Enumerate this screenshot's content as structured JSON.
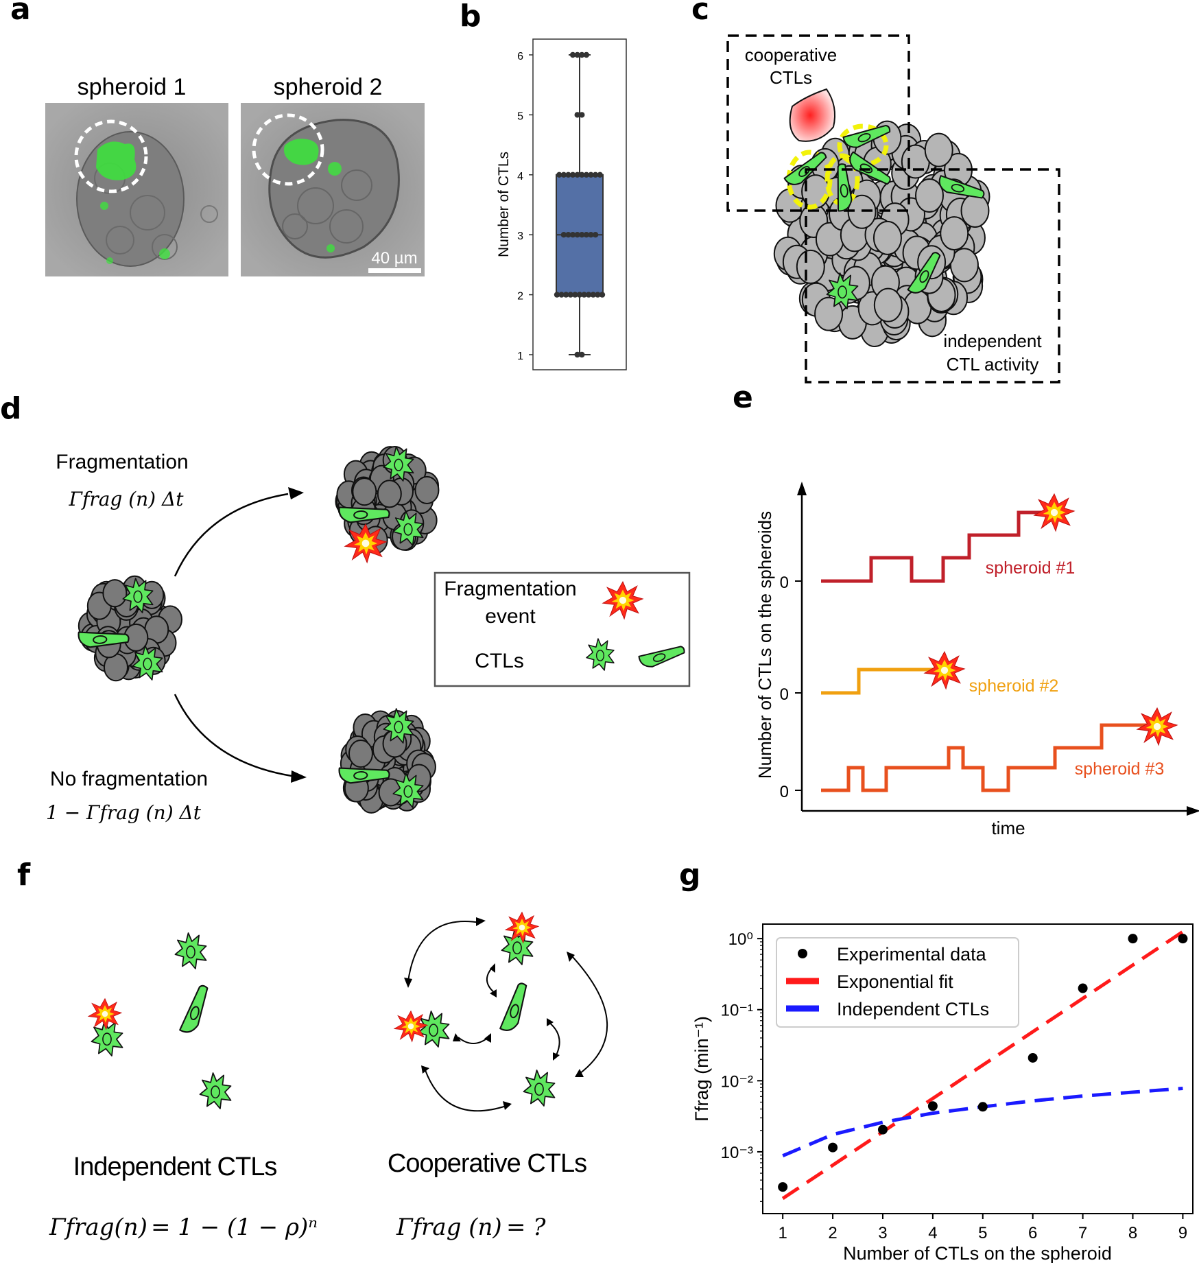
{
  "panel_labels": [
    "a",
    "b",
    "c",
    "d",
    "e",
    "f",
    "g"
  ],
  "panel_a": {
    "titles": [
      "spheroid 1",
      "spheroid 2"
    ],
    "scale_bar": "40 µm"
  },
  "panel_c": {
    "cooperative_label_1": "cooperative",
    "cooperative_label_2": "CTLs",
    "independent_label_1": "independent",
    "independent_label_2": "CTL activity"
  },
  "panel_d": {
    "frag_title": "Fragmentation",
    "frag_formula": "Γfrag (n) Δt",
    "nofrag_title": "No fragmentation",
    "nofrag_formula": "1 − Γfrag (n) Δt",
    "legend_event_1": "Fragmentation",
    "legend_event_2": "event",
    "legend_ctls": "CTLs"
  },
  "panel_e": {
    "ylabel": "Number of CTLs on the spheroids",
    "xlabel": "time",
    "zero_label": "0",
    "series": [
      {
        "name": "spheroid #1",
        "color": "#c0202a"
      },
      {
        "name": "spheroid #2",
        "color": "#f0a010"
      },
      {
        "name": "spheroid #3",
        "color": "#e8501e"
      }
    ]
  },
  "panel_f": {
    "independent_title": "Independent CTLs",
    "independent_formula_lhs": "Γfrag(n)",
    "independent_formula_rhs": "= 1 − (1 − ρ)ⁿ",
    "cooperative_title": "Cooperative CTLs",
    "cooperative_formula_lhs": "Γfrag (n)",
    "cooperative_formula_rhs": "=  ?"
  },
  "chart_data": [
    {
      "panel": "b",
      "type": "box",
      "ylabel": "Number of CTLs",
      "yticks": [
        1,
        2,
        3,
        4,
        5,
        6
      ],
      "ylim": [
        0.8,
        6.3
      ],
      "box": {
        "min": 1,
        "q1": 2,
        "median": 3,
        "q3": 4,
        "max": 6,
        "color": "#5470a6"
      },
      "points": [
        {
          "y": 1,
          "count": 2
        },
        {
          "y": 2,
          "count": 11
        },
        {
          "y": 3,
          "count": 8
        },
        {
          "y": 4,
          "count": 10
        },
        {
          "y": 5,
          "count": 2
        },
        {
          "y": 6,
          "count": 4
        }
      ]
    },
    {
      "panel": "g",
      "type": "scatter",
      "xlabel": "Number of CTLs on the spheroid",
      "ylabel": "Γfrag (min⁻¹)",
      "xticks": [
        1,
        2,
        3,
        4,
        5,
        6,
        7,
        8,
        9
      ],
      "yscale": "log",
      "yticks": [
        "10⁰",
        "10⁻¹",
        "10⁻²",
        "10⁻³"
      ],
      "xlim": [
        0.6,
        9.2
      ],
      "ylim": [
        0.000135,
        1.6
      ],
      "legend_position": "upper-left",
      "series": [
        {
          "name": "Experimental data",
          "color": "#000000",
          "x": [
            1,
            2,
            3,
            4,
            5,
            6,
            7,
            8,
            9
          ],
          "y": [
            0.00032,
            0.00115,
            0.00205,
            0.0044,
            0.0043,
            0.021,
            0.2,
            1.0,
            1.0
          ]
        },
        {
          "name": "Exponential fit",
          "color": "#ff1a1a",
          "x": [
            1,
            9
          ],
          "y": [
            0.00022,
            1.25
          ]
        },
        {
          "name": "Independent CTLs",
          "color": "#1a1aff",
          "x": [
            1,
            2,
            3,
            4,
            5,
            6,
            7,
            8,
            9
          ],
          "y": [
            0.00088,
            0.00175,
            0.0026,
            0.0035,
            0.0043,
            0.0052,
            0.0061,
            0.0069,
            0.0078
          ]
        }
      ]
    }
  ]
}
